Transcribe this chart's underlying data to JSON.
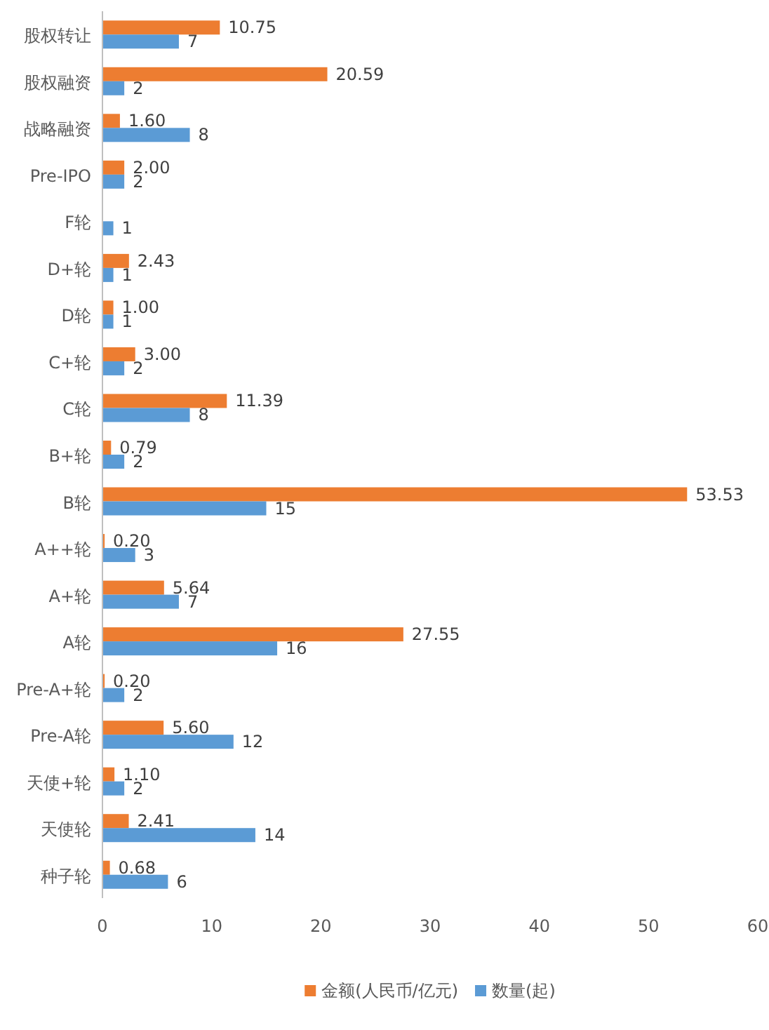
{
  "chart_data": {
    "type": "bar",
    "orientation": "horizontal",
    "categories": [
      "股权转让",
      "股权融资",
      "战略融资",
      "Pre-IPO",
      "F轮",
      "D+轮",
      "D轮",
      "C+轮",
      "C轮",
      "B+轮",
      "B轮",
      "A++轮",
      "A+轮",
      "A轮",
      "Pre-A+轮",
      "Pre-A轮",
      "天使+轮",
      "天使轮",
      "种子轮"
    ],
    "series": [
      {
        "name": "金额(人民币/亿元)",
        "color": "#ed7d31",
        "values": [
          10.75,
          20.59,
          1.6,
          2.0,
          null,
          2.43,
          1.0,
          3.0,
          11.39,
          0.79,
          53.53,
          0.2,
          5.64,
          27.55,
          0.2,
          5.6,
          1.1,
          2.41,
          0.68
        ],
        "value_labels": [
          "10.75",
          "20.59",
          "1.60",
          "2.00",
          null,
          "2.43",
          "1.00",
          "3.00",
          "11.39",
          "0.79",
          "53.53",
          "0.20",
          "5.64",
          "27.55",
          "0.20",
          "5.60",
          "1.10",
          "2.41",
          "0.68"
        ]
      },
      {
        "name": "数量(起)",
        "color": "#5b9bd5",
        "values": [
          7,
          2,
          8,
          2,
          1,
          1,
          1,
          2,
          8,
          2,
          15,
          3,
          7,
          16,
          2,
          12,
          2,
          14,
          6
        ],
        "value_labels": [
          "7",
          "2",
          "8",
          "2",
          "1",
          "1",
          "1",
          "2",
          "8",
          "2",
          "15",
          "3",
          "7",
          "16",
          "2",
          "12",
          "2",
          "14",
          "6"
        ]
      }
    ],
    "xlim": [
      0,
      60
    ],
    "xticks": [
      0,
      10,
      20,
      30,
      40,
      50,
      60
    ],
    "grid": false,
    "legend": "bottom"
  }
}
